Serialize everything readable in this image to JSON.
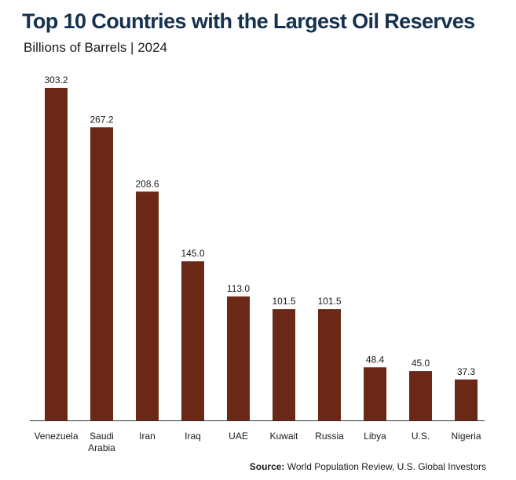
{
  "chart_data": {
    "type": "bar",
    "title": "Top 10 Countries with the Largest Oil Reserves",
    "subtitle": "Billions of Barrels | 2024",
    "categories": [
      "Venezuela",
      "Saudi Arabia",
      "Iran",
      "Iraq",
      "UAE",
      "Kuwait",
      "Russia",
      "Libya",
      "U.S.",
      "Nigeria"
    ],
    "values": [
      303.2,
      267.2,
      208.6,
      145.0,
      113.0,
      101.5,
      101.5,
      48.4,
      45.0,
      37.3
    ],
    "value_labels": [
      "303.2",
      "267.2",
      "208.6",
      "145.0",
      "113.0",
      "101.5",
      "101.5",
      "48.4",
      "45.0",
      "37.3"
    ],
    "xlabel": "",
    "ylabel": "",
    "ylim": [
      0,
      303.2
    ],
    "grid": false,
    "legend": "none",
    "bar_color": "#6b2817",
    "axis_color": "#333333"
  },
  "source": {
    "label": "Source:",
    "text": "World Population Review, U.S. Global Investors"
  }
}
